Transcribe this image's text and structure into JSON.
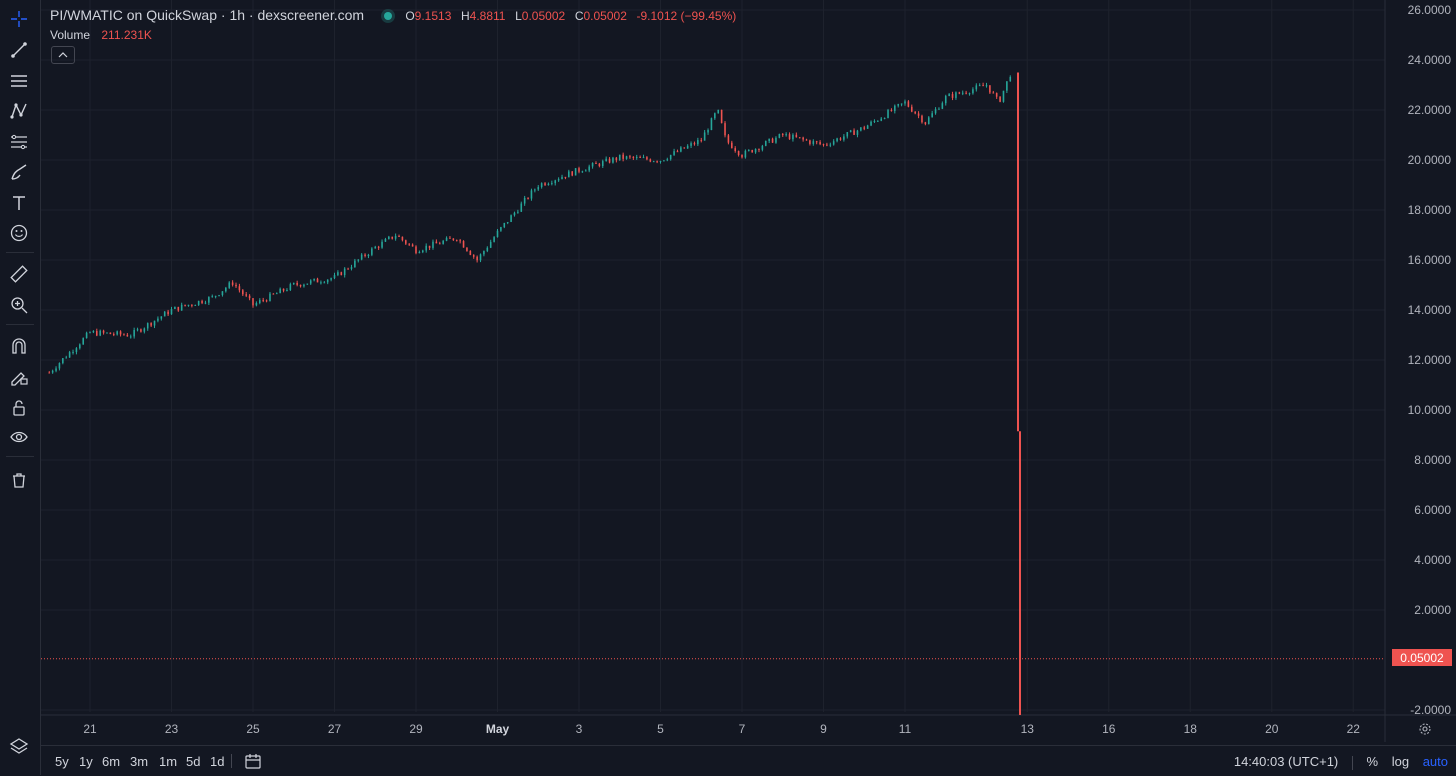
{
  "legend": {
    "title": "PI/WMATIC on QuickSwap · 1h · dexscreener.com",
    "open_label": "O",
    "open": "9.1513",
    "high_label": "H",
    "high": "4.8811",
    "low_label": "L",
    "low": "0.05002",
    "close_label": "C",
    "close": "0.05002",
    "change": "-9.1012 (−99.45%)"
  },
  "volume": {
    "label": "Volume",
    "value": "211.231K"
  },
  "price_axis": {
    "ticks": [
      "26.0000",
      "24.0000",
      "22.0000",
      "20.0000",
      "18.0000",
      "16.0000",
      "14.0000",
      "12.0000",
      "10.0000",
      "8.0000",
      "6.0000",
      "4.0000",
      "2.0000",
      "-2.0000"
    ],
    "current_price": "0.05002"
  },
  "time_axis": {
    "ticks": [
      "21",
      "23",
      "25",
      "27",
      "29",
      "May",
      "3",
      "5",
      "7",
      "9",
      "11",
      "13",
      "16",
      "18",
      "20",
      "22"
    ]
  },
  "bottom_bar": {
    "ranges": [
      "5y",
      "1y",
      "6m",
      "3m",
      "1m",
      "5d",
      "1d"
    ],
    "time": "14:40:03 (UTC+1)",
    "percent": "%",
    "log": "log",
    "auto": "auto"
  },
  "colors": {
    "background": "#131722",
    "up": "#26a69a",
    "down": "#ef5350",
    "grid": "#1e222d",
    "accent": "#2962ff"
  },
  "toolbar": {
    "tools": [
      "crosshair-icon",
      "trend-line-icon",
      "horizontal-lines-icon",
      "pattern-icon",
      "fib-icon",
      "brush-icon",
      "text-icon",
      "emoji-icon",
      "ruler-icon",
      "zoom-icon",
      "magnet-icon",
      "lock-drawing-icon",
      "unlock-icon",
      "eye-icon",
      "trash-icon"
    ]
  },
  "chart_data": {
    "type": "candlestick",
    "timeframe": "1h",
    "x_labels": [
      "21",
      "23",
      "25",
      "27",
      "29",
      "May",
      "3",
      "5",
      "7",
      "9",
      "11",
      "13",
      "16",
      "18",
      "20",
      "22"
    ],
    "ylim": [
      -2.2,
      26
    ],
    "trend_points": [
      [
        "Apr 20",
        11.5
      ],
      [
        "Apr 21",
        13.1
      ],
      [
        "Apr 22",
        13.0
      ],
      [
        "Apr 23",
        14.0
      ],
      [
        "Apr 24",
        14.5
      ],
      [
        "Apr 24.5",
        15.1
      ],
      [
        "Apr 25",
        14.2
      ],
      [
        "Apr 26",
        15.0
      ],
      [
        "Apr 27",
        15.3
      ],
      [
        "Apr 28",
        16.5
      ],
      [
        "Apr 28.5",
        17.0
      ],
      [
        "Apr 29",
        16.4
      ],
      [
        "Apr 30",
        16.9
      ],
      [
        "Apr 30.5",
        16.0
      ],
      [
        "May 1",
        17.1
      ],
      [
        "May 2",
        19.0
      ],
      [
        "May 3",
        19.6
      ],
      [
        "May 4",
        20.1
      ],
      [
        "May 5",
        20.0
      ],
      [
        "May 6",
        20.8
      ],
      [
        "May 6.4",
        22.0
      ],
      [
        "May 6.6",
        20.8
      ],
      [
        "May 7",
        20.2
      ],
      [
        "May 8",
        21.0
      ],
      [
        "May 9",
        20.6
      ],
      [
        "May 10",
        21.3
      ],
      [
        "May 11",
        22.3
      ],
      [
        "May 11.5",
        21.5
      ],
      [
        "May 12",
        22.5
      ],
      [
        "May 13",
        23.0
      ],
      [
        "May 13.3",
        22.3
      ],
      [
        "May 13.6",
        23.5
      ]
    ],
    "last_candle": {
      "open": 9.1513,
      "high": 4.8811,
      "low": 0.05002,
      "close": 0.05002
    },
    "crash_high": 23.5,
    "crash_low": -2.2,
    "current_price": 0.05002
  }
}
